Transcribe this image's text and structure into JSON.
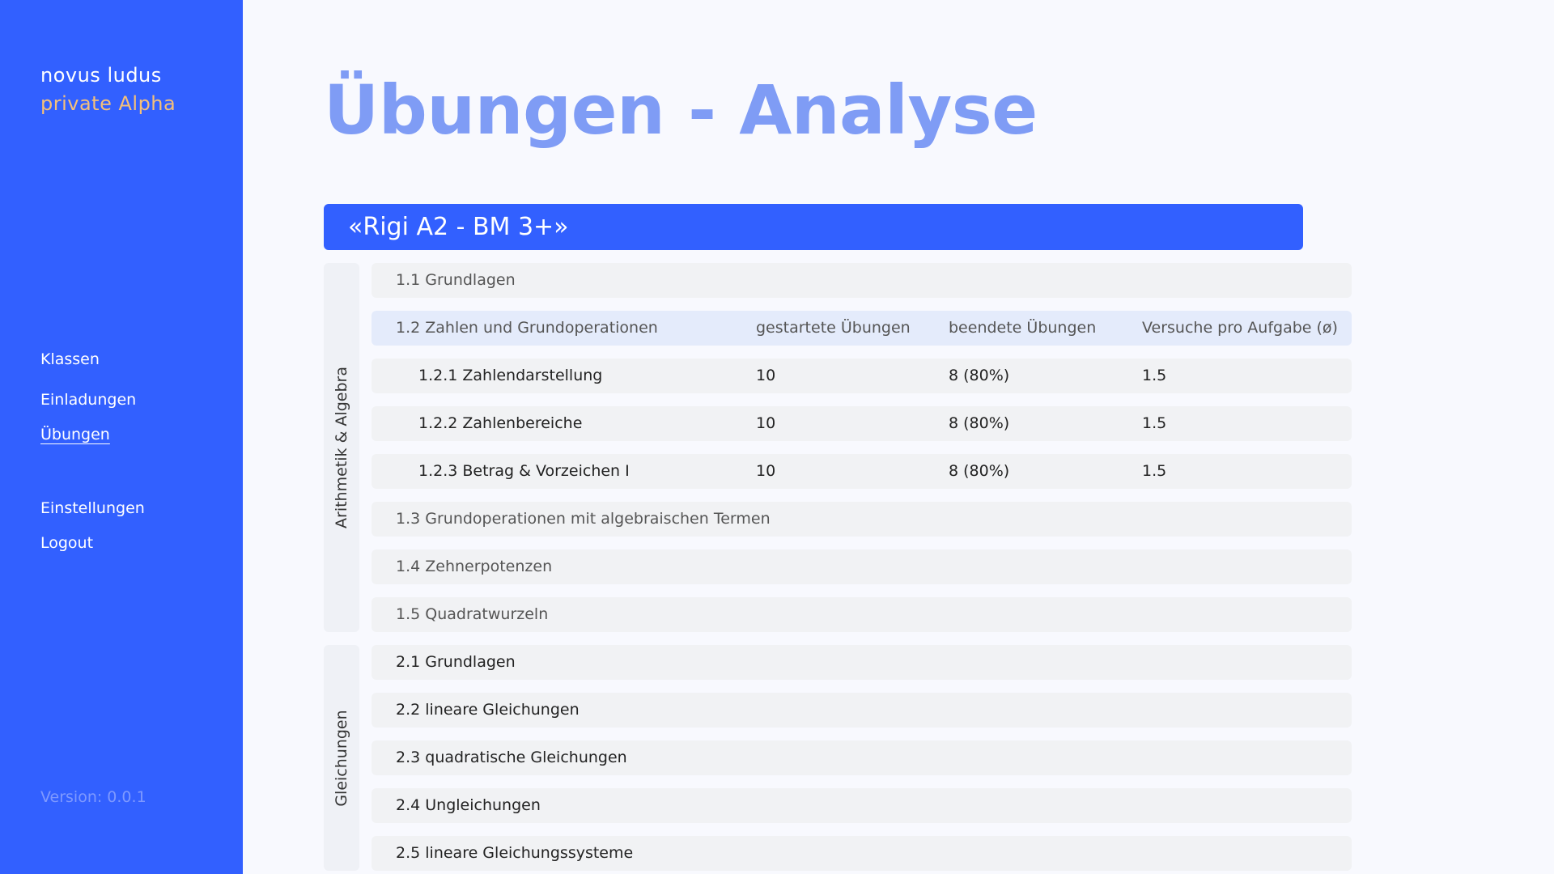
{
  "brand": {
    "name": "novus ludus",
    "subtitle": "private Alpha"
  },
  "nav": {
    "items": [
      {
        "label": "Klassen"
      },
      {
        "label": "Einladungen"
      },
      {
        "label": "Übungen",
        "active": true
      },
      {
        "label": "Einstellungen"
      },
      {
        "label": "Logout"
      }
    ]
  },
  "version": "Version: 0.0.1",
  "page": {
    "title": "Übungen - Analyse"
  },
  "course": {
    "title": "«Rigi A2 - BM 3+»"
  },
  "columns": {
    "started": "gestartete Übungen",
    "finished": "beendete Übungen",
    "attempts": "Versuche pro Aufgabe (ø)"
  },
  "sections": [
    {
      "label": "Arithmetik & Algebra",
      "rows": [
        {
          "title": "1.1 Grundlagen"
        },
        {
          "title": "1.2 Zahlen und Grundoperationen",
          "expanded": true
        },
        {
          "title": "1.2.1 Zahlendarstellung",
          "started": "10",
          "finished": "8 (80%)",
          "attempts": "1.5"
        },
        {
          "title": "1.2.2 Zahlenbereiche",
          "started": "10",
          "finished": "8 (80%)",
          "attempts": "1.5"
        },
        {
          "title": "1.2.3 Betrag & Vorzeichen I",
          "started": "10",
          "finished": "8 (80%)",
          "attempts": "1.5"
        },
        {
          "title": "1.3 Grundoperationen mit algebraischen Termen"
        },
        {
          "title": "1.4 Zehnerpotenzen"
        },
        {
          "title": "1.5 Quadratwurzeln"
        }
      ]
    },
    {
      "label": "Gleichungen",
      "rows": [
        {
          "title": "2.1 Grundlagen"
        },
        {
          "title": "2.2 lineare Gleichungen"
        },
        {
          "title": "2.3 quadratische Gleichungen"
        },
        {
          "title": "2.4 Ungleichungen"
        },
        {
          "title": "2.5 lineare Gleichungssysteme"
        }
      ]
    }
  ],
  "colors": {
    "sidebar": "#3260FF",
    "accent_title": "#7F9CF5",
    "brand_subtitle": "#F4C07A"
  }
}
